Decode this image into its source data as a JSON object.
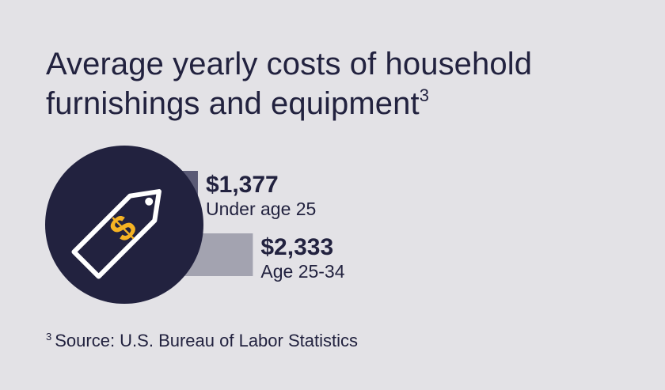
{
  "header": {
    "title_line1": "Average yearly costs of household",
    "title_line2": "furnishings and equipment",
    "title_footnote": "3"
  },
  "chart_data": {
    "type": "bar",
    "orientation": "horizontal",
    "categories": [
      "Under age 25",
      "Age 25-34"
    ],
    "values": [
      1377,
      2333
    ],
    "value_labels": [
      "$1,377",
      "$2,333"
    ],
    "unit": "USD per year",
    "colors": [
      "#5a5a75",
      "#a3a3b0"
    ],
    "title": "Average yearly costs of household furnishings and equipment",
    "xlabel": "",
    "ylabel": "",
    "grid": false,
    "legend": "none"
  },
  "icon": {
    "name": "price-tag-icon",
    "circle_color": "#22223f",
    "tag_color": "#ffffff",
    "dollar_color": "#f5b323"
  },
  "footer": {
    "footnote_marker": "3",
    "source": "Source: U.S. Bureau of Labor Statistics"
  }
}
